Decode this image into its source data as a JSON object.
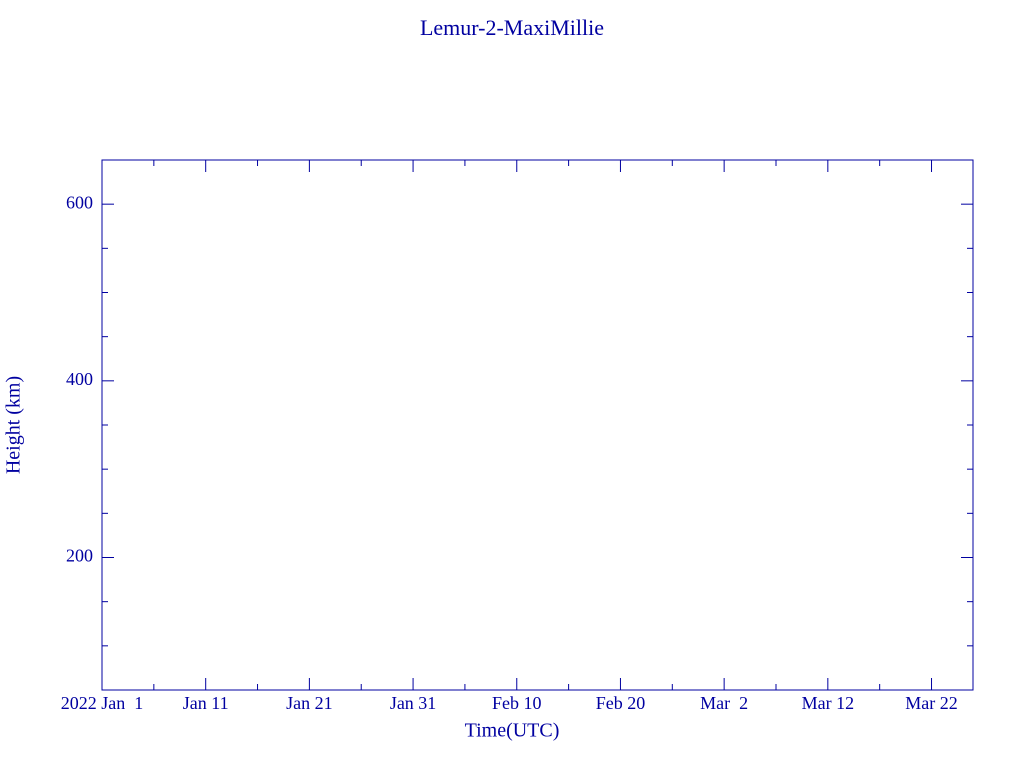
{
  "chart_data": {
    "type": "line",
    "title": "Lemur-2-MaxiMillie",
    "xlabel": "Time(UTC)",
    "ylabel": "Height (km)",
    "series": [],
    "xlim": [
      "2022-01-01",
      "2022-03-26"
    ],
    "xticks": [
      {
        "value": "2022-01-01",
        "label": "2022 Jan  1"
      },
      {
        "value": "2022-01-11",
        "label": "Jan 11"
      },
      {
        "value": "2022-01-21",
        "label": "Jan 21"
      },
      {
        "value": "2022-01-31",
        "label": "Jan 31"
      },
      {
        "value": "2022-02-10",
        "label": "Feb 10"
      },
      {
        "value": "2022-02-20",
        "label": "Feb 20"
      },
      {
        "value": "2022-03-02",
        "label": "Mar  2"
      },
      {
        "value": "2022-03-12",
        "label": "Mar 12"
      },
      {
        "value": "2022-03-22",
        "label": "Mar 22"
      }
    ],
    "xminor_ticks": [
      "2022-01-06",
      "2022-01-16",
      "2022-01-26",
      "2022-02-05",
      "2022-02-15",
      "2022-02-25",
      "2022-03-07",
      "2022-03-17"
    ],
    "ylim": [
      50,
      650
    ],
    "yticks": [
      200,
      400,
      600
    ],
    "yminor_ticks": [
      100,
      150,
      250,
      300,
      350,
      450,
      500,
      550
    ],
    "color": "#0000a0"
  }
}
